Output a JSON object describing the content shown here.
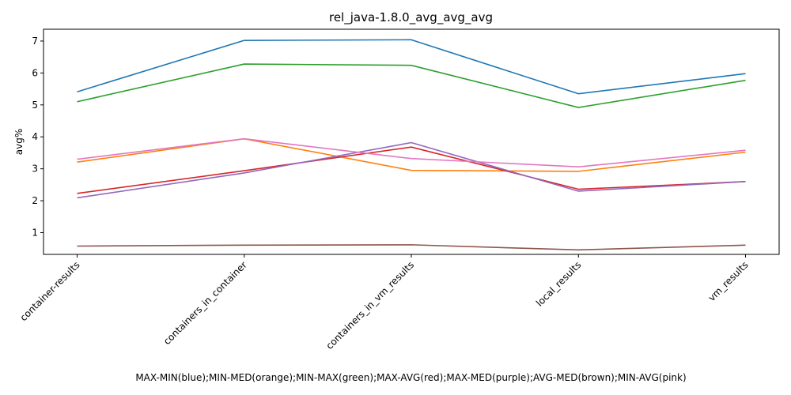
{
  "chart_data": {
    "type": "line",
    "title": "rel_java-1.8.0_avg_avg_avg",
    "xlabel": "MAX-MIN(blue);MIN-MED(orange);MIN-MAX(green);MAX-AVG(red);MAX-MED(purple);AVG-MED(brown);MIN-AVG(pink)",
    "ylabel": "avg%",
    "categories": [
      "container-results",
      "containers_in_container",
      "containers_in_vm_results",
      "local_results",
      "vm_results"
    ],
    "yticks": [
      1,
      2,
      3,
      4,
      5,
      6,
      7
    ],
    "ylim": [
      0.32,
      7.37
    ],
    "grid": false,
    "legend": "none",
    "series": [
      {
        "color": "#1f77b4",
        "values": [
          5.41,
          7.02,
          7.04,
          5.35,
          5.98
        ]
      },
      {
        "color": "#ff7f0e",
        "values": [
          3.21,
          3.94,
          2.95,
          2.92,
          3.52
        ]
      },
      {
        "color": "#2ca02c",
        "values": [
          5.1,
          6.28,
          6.24,
          4.92,
          5.77
        ]
      },
      {
        "color": "#d62728",
        "values": [
          2.23,
          2.94,
          3.68,
          2.36,
          2.6
        ]
      },
      {
        "color": "#9467bd",
        "values": [
          2.09,
          2.87,
          3.82,
          2.3,
          2.6
        ]
      },
      {
        "color": "#8c564b",
        "values": [
          0.58,
          0.61,
          0.62,
          0.46,
          0.61
        ]
      },
      {
        "color": "#e377c2",
        "values": [
          3.3,
          3.94,
          3.32,
          3.06,
          3.58
        ]
      }
    ]
  }
}
